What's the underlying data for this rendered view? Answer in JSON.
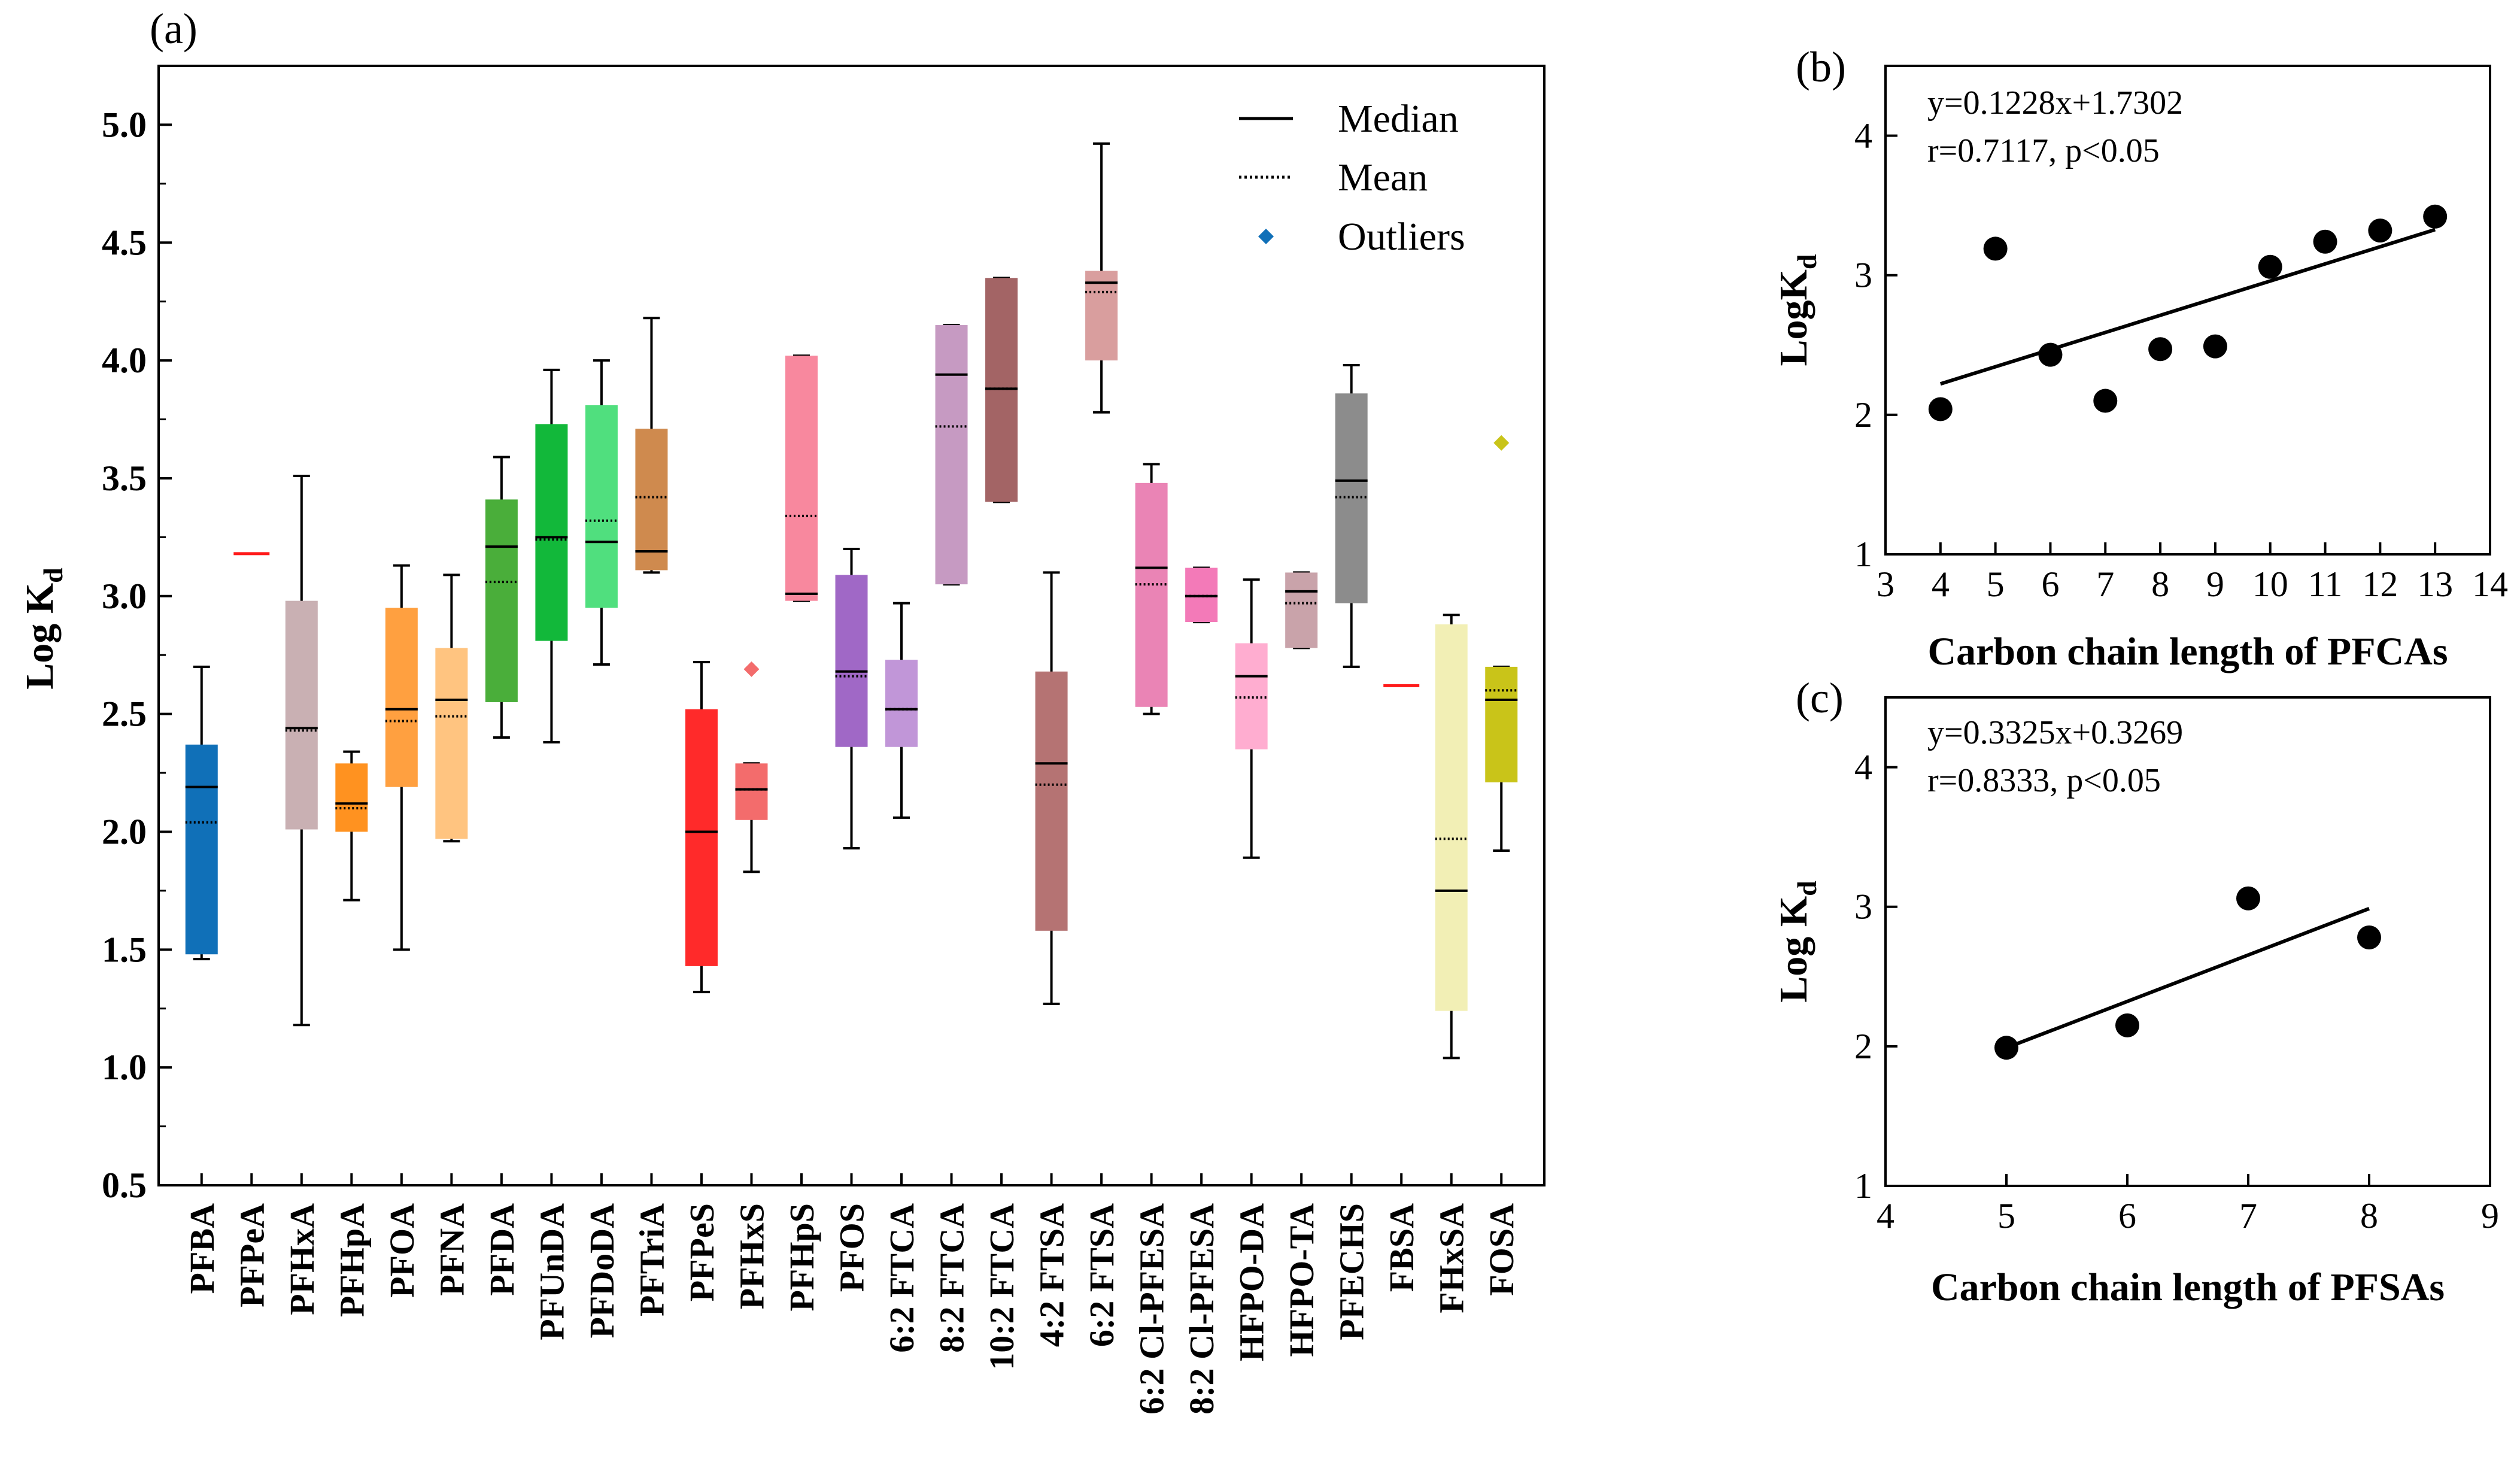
{
  "chart_data": [
    {
      "panel": "(a)",
      "type": "box",
      "ylabel_main": "Log K",
      "ylabel_sub": "d",
      "ylim": [
        0.5,
        5.25
      ],
      "yticks": [
        "0.5",
        "1.0",
        "1.5",
        "2.0",
        "2.5",
        "3.0",
        "3.5",
        "4.0",
        "4.5",
        "5.0"
      ],
      "legend": {
        "median": "Median",
        "mean": "Mean",
        "outliers": "Outliers"
      },
      "boxes": [
        {
          "name": "PFBA",
          "color": "#1070b8",
          "q1": 1.48,
          "q3": 2.37,
          "median": 2.19,
          "mean": 2.04,
          "min": 1.46,
          "max": 2.7,
          "outliers": []
        },
        {
          "name": "PFPeA",
          "color": "#ff1a1a",
          "q1": 3.18,
          "q3": 3.18,
          "median": 3.18,
          "mean": 3.18,
          "min": 3.18,
          "max": 3.18,
          "outliers": [],
          "single": true
        },
        {
          "name": "PFHxA",
          "color": "#c9b0b3",
          "q1": 2.01,
          "q3": 2.98,
          "median": 2.44,
          "mean": 2.43,
          "min": 1.18,
          "max": 3.51,
          "outliers": []
        },
        {
          "name": "PFHpA",
          "color": "#ff9220",
          "q1": 2.0,
          "q3": 2.29,
          "median": 2.12,
          "mean": 2.1,
          "min": 1.71,
          "max": 2.34,
          "outliers": []
        },
        {
          "name": "PFOA",
          "color": "#ffa040",
          "q1": 2.19,
          "q3": 2.95,
          "median": 2.52,
          "mean": 2.47,
          "min": 1.5,
          "max": 3.13,
          "outliers": []
        },
        {
          "name": "PFNA",
          "color": "#ffc480",
          "q1": 1.97,
          "q3": 2.78,
          "median": 2.56,
          "mean": 2.49,
          "min": 1.96,
          "max": 3.09,
          "outliers": []
        },
        {
          "name": "PFDA",
          "color": "#4aae3a",
          "q1": 2.55,
          "q3": 3.41,
          "median": 3.21,
          "mean": 3.06,
          "min": 2.4,
          "max": 3.59,
          "outliers": []
        },
        {
          "name": "PFUnDA",
          "color": "#12b83a",
          "q1": 2.81,
          "q3": 3.73,
          "median": 3.25,
          "mean": 3.24,
          "min": 2.38,
          "max": 3.96,
          "outliers": []
        },
        {
          "name": "PFDoDA",
          "color": "#50df7e",
          "q1": 2.95,
          "q3": 3.81,
          "median": 3.23,
          "mean": 3.32,
          "min": 2.71,
          "max": 4.0,
          "outliers": []
        },
        {
          "name": "PFTriA",
          "color": "#cf8a4e",
          "q1": 3.11,
          "q3": 3.71,
          "median": 3.19,
          "mean": 3.42,
          "min": 3.1,
          "max": 4.18,
          "outliers": []
        },
        {
          "name": "PFPeS",
          "color": "#ff2a2a",
          "q1": 1.43,
          "q3": 2.52,
          "median": 2.0,
          "mean": 2.0,
          "min": 1.32,
          "max": 2.72,
          "outliers": []
        },
        {
          "name": "PFHxS",
          "color": "#f36c6c",
          "q1": 2.05,
          "q3": 2.29,
          "median": 2.18,
          "mean": 2.18,
          "min": 1.83,
          "max": 2.29,
          "outliers": [
            2.69
          ]
        },
        {
          "name": "PFHpS",
          "color": "#f8889e",
          "q1": 2.98,
          "q3": 4.02,
          "median": 3.01,
          "mean": 3.34,
          "min": 2.98,
          "max": 4.02,
          "outliers": []
        },
        {
          "name": "PFOS",
          "color": "#a068c6",
          "q1": 2.36,
          "q3": 3.09,
          "median": 2.68,
          "mean": 2.66,
          "min": 1.93,
          "max": 3.2,
          "outliers": []
        },
        {
          "name": "6:2 FTCA",
          "color": "#c196d8",
          "q1": 2.36,
          "q3": 2.73,
          "median": 2.52,
          "mean": 2.52,
          "min": 2.06,
          "max": 2.97,
          "outliers": []
        },
        {
          "name": "8:2 FTCA",
          "color": "#c69ac2",
          "q1": 3.05,
          "q3": 4.15,
          "median": 3.94,
          "mean": 3.72,
          "min": 3.05,
          "max": 4.15,
          "outliers": []
        },
        {
          "name": "10:2 FTCA",
          "color": "#a36465",
          "q1": 3.4,
          "q3": 4.35,
          "median": 3.88,
          "mean": 3.88,
          "min": 3.4,
          "max": 4.35,
          "outliers": []
        },
        {
          "name": "4:2 FTSA",
          "color": "#b57373",
          "q1": 1.58,
          "q3": 2.68,
          "median": 2.29,
          "mean": 2.2,
          "min": 1.27,
          "max": 3.1,
          "outliers": []
        },
        {
          "name": "6:2 FTSA",
          "color": "#d99e9e",
          "q1": 4.0,
          "q3": 4.38,
          "median": 4.33,
          "mean": 4.29,
          "min": 3.78,
          "max": 4.92,
          "outliers": []
        },
        {
          "name": "6:2 Cl-PFESA",
          "color": "#ea84b5",
          "q1": 2.53,
          "q3": 3.48,
          "median": 3.12,
          "mean": 3.05,
          "min": 2.5,
          "max": 3.56,
          "outliers": []
        },
        {
          "name": "8:2 Cl-PFESA",
          "color": "#f37ab8",
          "q1": 2.89,
          "q3": 3.12,
          "median": 3.0,
          "mean": 3.0,
          "min": 2.89,
          "max": 3.12,
          "outliers": []
        },
        {
          "name": "HFPO-DA",
          "color": "#ffadd0",
          "q1": 2.35,
          "q3": 2.8,
          "median": 2.66,
          "mean": 2.57,
          "min": 1.89,
          "max": 3.07,
          "outliers": []
        },
        {
          "name": "HFPO-TA",
          "color": "#c9a3aa",
          "q1": 2.78,
          "q3": 3.1,
          "median": 3.02,
          "mean": 2.97,
          "min": 2.78,
          "max": 3.1,
          "outliers": []
        },
        {
          "name": "PFECHS",
          "color": "#8c8c8c",
          "q1": 2.97,
          "q3": 3.86,
          "median": 3.49,
          "mean": 3.42,
          "min": 2.7,
          "max": 3.98,
          "outliers": []
        },
        {
          "name": "FBSA",
          "color": "#ff1a1a",
          "q1": 2.62,
          "q3": 2.62,
          "median": 2.62,
          "mean": 2.62,
          "min": 2.62,
          "max": 2.62,
          "outliers": [],
          "single": true
        },
        {
          "name": "FHxSA",
          "color": "#f2efb5",
          "q1": 1.24,
          "q3": 2.88,
          "median": 1.75,
          "mean": 1.97,
          "min": 1.04,
          "max": 2.92,
          "outliers": []
        },
        {
          "name": "FOSA",
          "color": "#c9c419",
          "q1": 2.21,
          "q3": 2.7,
          "median": 2.56,
          "mean": 2.6,
          "min": 1.92,
          "max": 2.7,
          "outliers": [
            3.65
          ]
        }
      ]
    },
    {
      "panel": "(b)",
      "type": "scatter",
      "xlabel": "Carbon chain length of PFCAs",
      "ylabel_main": "LogK",
      "ylabel_sub": "d",
      "xlim": [
        3,
        14
      ],
      "ylim": [
        1,
        4.5
      ],
      "xticks": [
        "3",
        "4",
        "5",
        "6",
        "7",
        "8",
        "9",
        "10",
        "11",
        "12",
        "13",
        "14"
      ],
      "yticks": [
        "1",
        "2",
        "3",
        "4"
      ],
      "equation": "y=0.1228x+1.7302",
      "stats": "r=0.7117, p<0.05",
      "fit": {
        "slope": 0.1228,
        "intercept": 1.7302,
        "x_range": [
          4,
          13
        ]
      },
      "points": [
        [
          4,
          2.04
        ],
        [
          5,
          3.19
        ],
        [
          6,
          2.43
        ],
        [
          7,
          2.1
        ],
        [
          8,
          2.47
        ],
        [
          9,
          2.49
        ],
        [
          10,
          3.06
        ],
        [
          11,
          3.24
        ],
        [
          12,
          3.32
        ],
        [
          13,
          3.42
        ]
      ]
    },
    {
      "panel": "(c)",
      "type": "scatter",
      "xlabel": "Carbon chain length of PFSAs",
      "ylabel_main": "Log K",
      "ylabel_sub": "d",
      "xlim": [
        4,
        9
      ],
      "ylim": [
        1,
        4.5
      ],
      "xticks": [
        "4",
        "5",
        "6",
        "7",
        "8",
        "9"
      ],
      "yticks": [
        "1",
        "2",
        "3",
        "4"
      ],
      "equation": "y=0.3325x+0.3269",
      "stats": "r=0.8333, p<0.05",
      "fit": {
        "slope": 0.3325,
        "intercept": 0.3269,
        "x_range": [
          5,
          8
        ]
      },
      "points": [
        [
          5,
          1.99
        ],
        [
          6,
          2.15
        ],
        [
          7,
          3.06
        ],
        [
          8,
          2.78
        ]
      ]
    }
  ],
  "colors": {
    "axis": "#000000",
    "outlier_legend": "#1070b8",
    "background": "#ffffff"
  },
  "outlier_colors": {
    "PFHxS": "#f36c6c",
    "FOSA": "#c9c419"
  }
}
